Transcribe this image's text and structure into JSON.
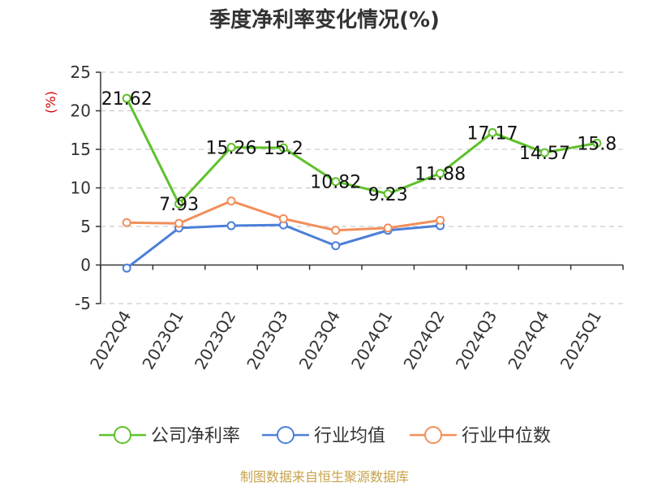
{
  "chart_data": {
    "type": "line",
    "title": "季度净利率变化情况(%)",
    "ylabel": "(%)",
    "ylim": [
      -5,
      25
    ],
    "yticks": [
      -5,
      0,
      5,
      10,
      15,
      20,
      25
    ],
    "grid": true,
    "categories": [
      "2022Q4",
      "2023Q1",
      "2023Q2",
      "2023Q3",
      "2023Q4",
      "2024Q1",
      "2024Q2",
      "2024Q3",
      "2024Q4",
      "2025Q1"
    ],
    "series": [
      {
        "name": "公司净利率",
        "color": "#5fc12a",
        "values": [
          21.62,
          7.93,
          15.26,
          15.2,
          10.82,
          9.23,
          11.88,
          17.17,
          14.57,
          15.8
        ],
        "labels": [
          "21.62",
          "7.93",
          "15.26",
          "15.2",
          "10.82",
          "9.23",
          "11.88",
          "17.17",
          "14.57",
          "15.8"
        ]
      },
      {
        "name": "行业均值",
        "color": "#4c7fd8",
        "values": [
          -0.4,
          4.8,
          5.1,
          5.2,
          2.5,
          4.5,
          5.1,
          null,
          null,
          null
        ]
      },
      {
        "name": "行业中位数",
        "color": "#f28e5a",
        "values": [
          5.5,
          5.4,
          8.3,
          6.0,
          4.5,
          4.8,
          5.8,
          null,
          null,
          null
        ]
      }
    ],
    "legend_position": "bottom"
  },
  "source": "制图数据来自恒生聚源数据库",
  "colors": {
    "axis": "#333333",
    "grid": "#cccccc",
    "ylabel": "#d40000",
    "source": "#c8a24a"
  }
}
